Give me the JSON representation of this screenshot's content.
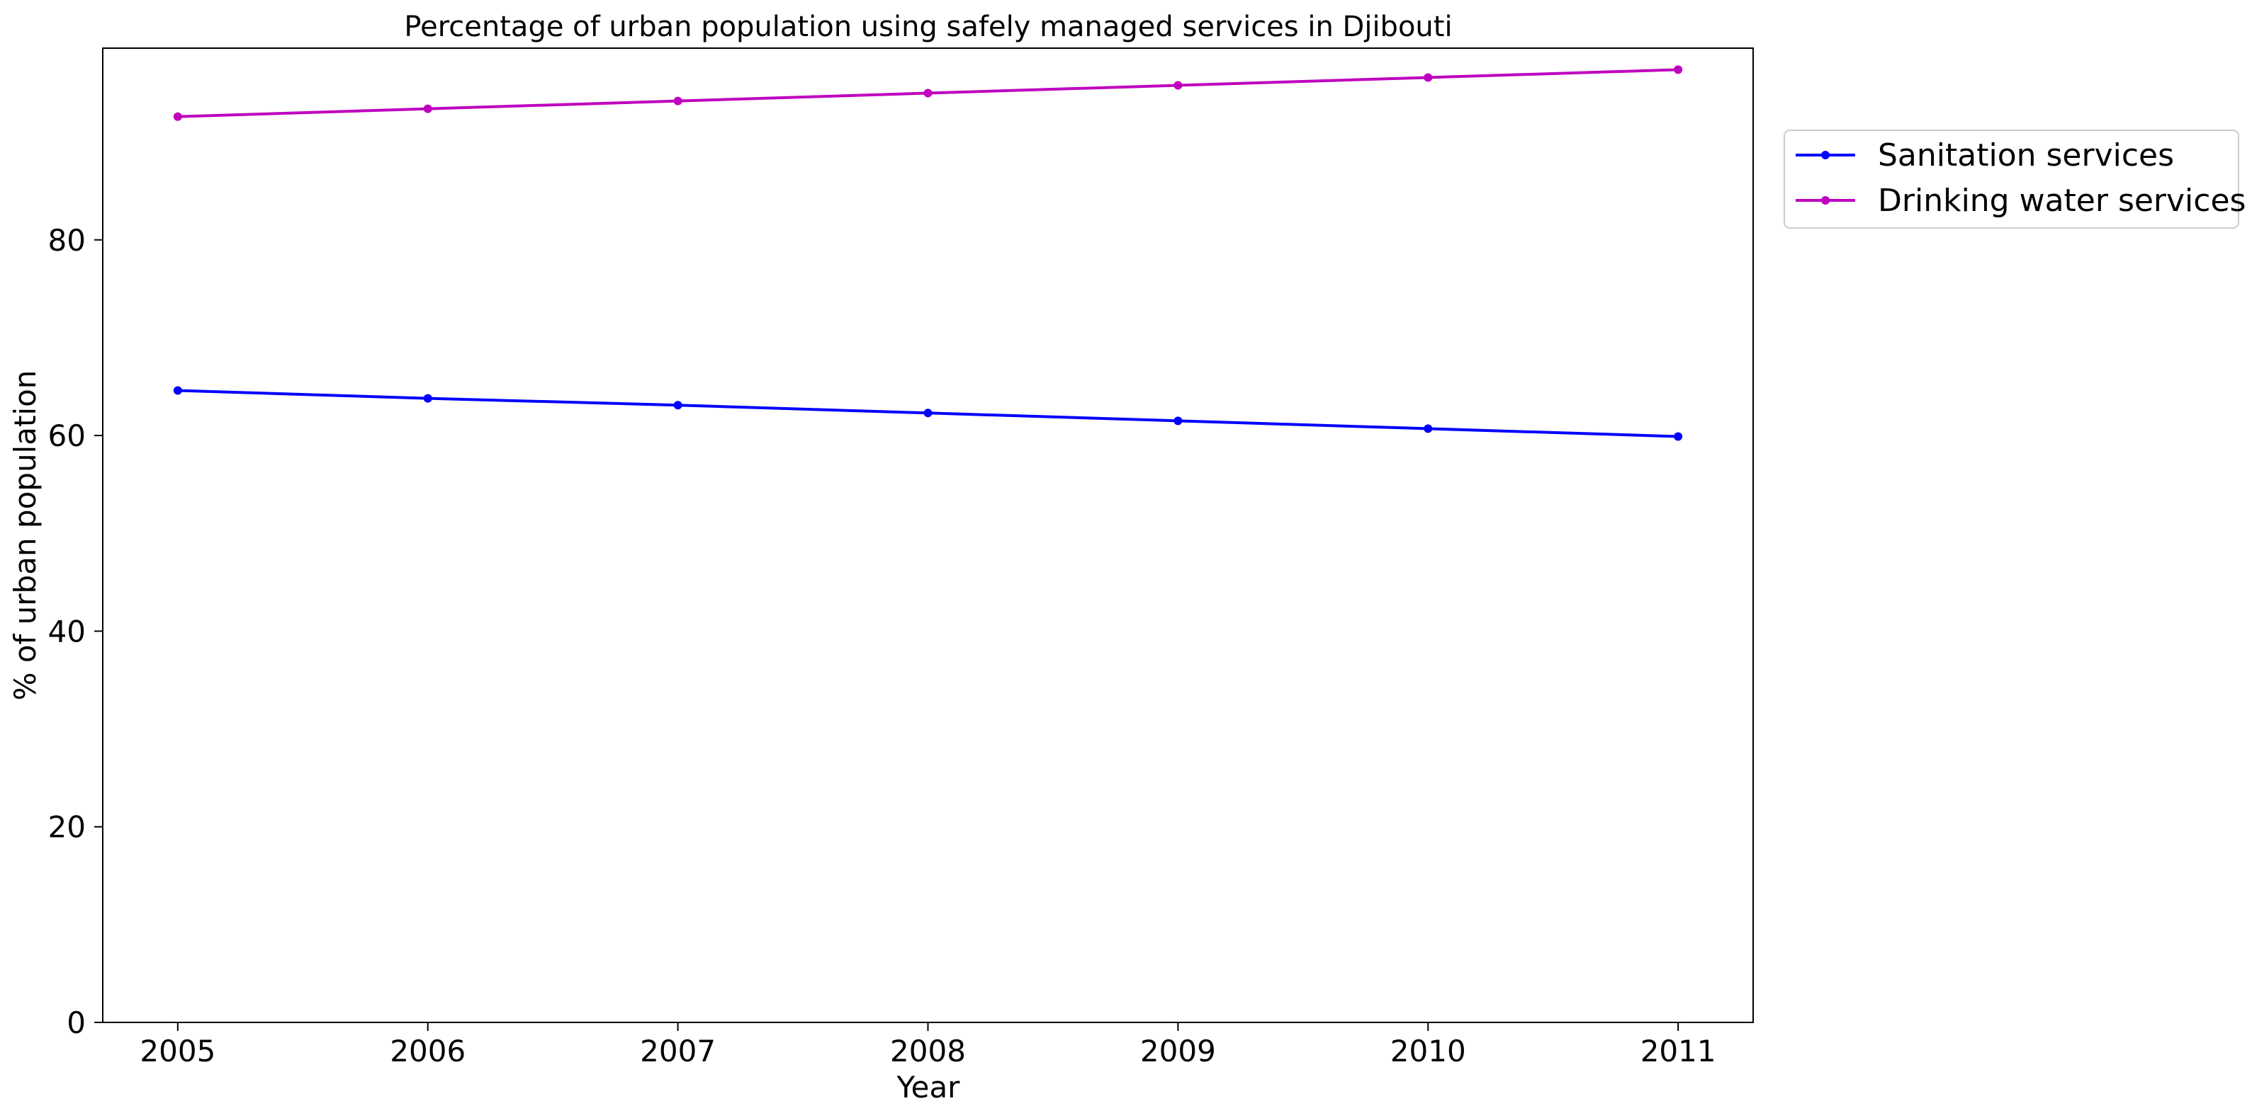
{
  "chart_data": {
    "type": "line",
    "title": "Percentage of urban population using safely managed services in Djibouti",
    "xlabel": "Year",
    "ylabel": "% of urban population",
    "x": [
      2005,
      2006,
      2007,
      2008,
      2009,
      2010,
      2011
    ],
    "x_tick_labels": [
      "2005",
      "2006",
      "2007",
      "2008",
      "2009",
      "2010",
      "2011"
    ],
    "xlim": [
      2004.7,
      2011.3
    ],
    "ylim": [
      0,
      99.6
    ],
    "y_ticks": [
      0,
      20,
      40,
      60,
      80
    ],
    "y_tick_labels": [
      "0",
      "20",
      "40",
      "60",
      "80"
    ],
    "grid": false,
    "legend_position": "outside right, top",
    "series": [
      {
        "name": "Sanitation services",
        "color": "#0000ff",
        "marker": "circle",
        "values": [
          64.6,
          63.8,
          63.1,
          62.3,
          61.5,
          60.7,
          59.9
        ]
      },
      {
        "name": "Drinking water services",
        "color": "#bf00bf",
        "marker": "circle",
        "values": [
          92.6,
          93.4,
          94.2,
          95.0,
          95.8,
          96.6,
          97.4
        ]
      }
    ]
  }
}
